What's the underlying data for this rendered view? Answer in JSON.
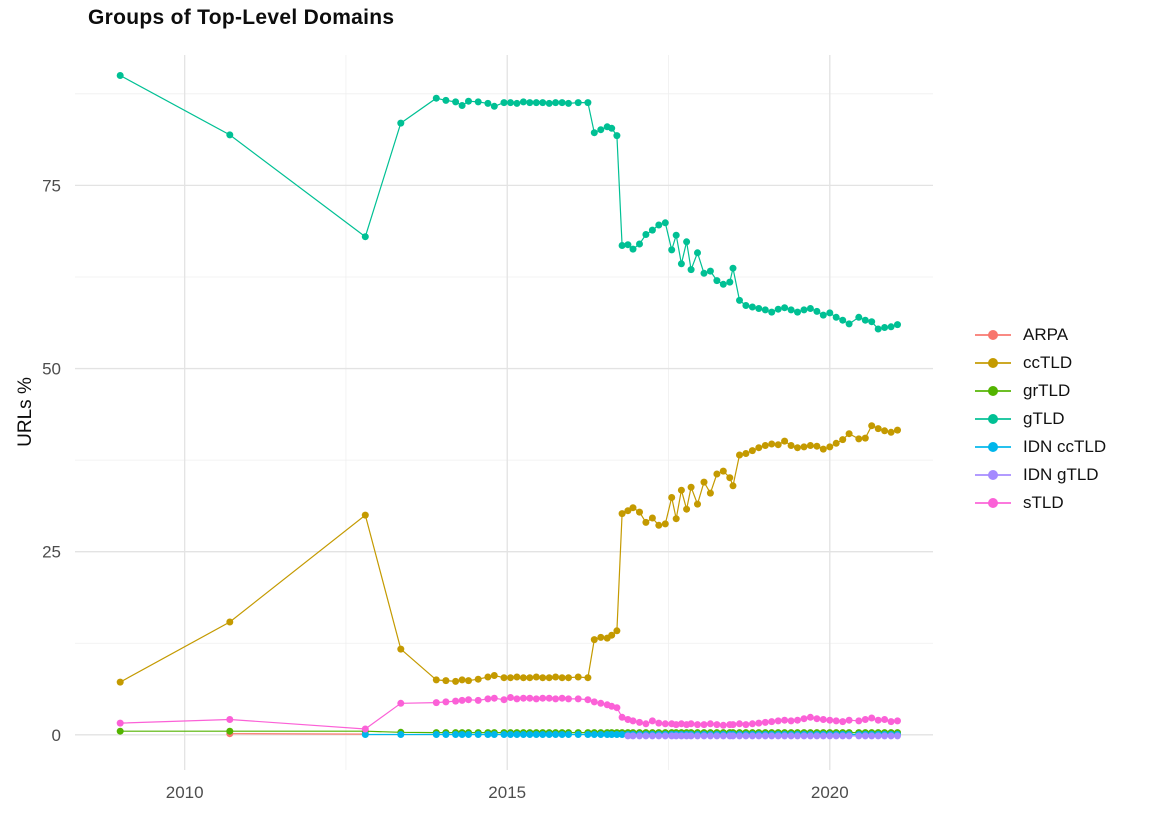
{
  "chart_data": {
    "type": "line",
    "title": "Groups of Top-Level Domains",
    "xlabel": "",
    "ylabel": "URLs %",
    "grid": "on",
    "legend_position": "right",
    "x_domain": [
      2008.3,
      2021.6
    ],
    "y_domain": [
      -4.8,
      92.8
    ],
    "x_ticks": [
      2010,
      2015,
      2020
    ],
    "x_minor": [
      2012.5,
      2017.5
    ],
    "y_ticks": [
      0,
      25,
      50,
      75
    ],
    "y_minor": [
      12.5,
      37.5,
      62.5,
      87.5
    ],
    "grid_major_color": "#e3e3e3",
    "grid_minor_color": "#efefef",
    "series": [
      {
        "name": "ARPA",
        "color": "#F8766D",
        "x": [
          2010.7,
          2012.8
        ],
        "y": [
          0.15,
          0.1
        ]
      },
      {
        "name": "ccTLD",
        "color": "#C49A00",
        "x": [
          2009,
          2010.7,
          2012.8,
          2013.35,
          2013.9,
          2014.05,
          2014.2,
          2014.3,
          2014.4,
          2014.55,
          2014.7,
          2014.8,
          2014.95,
          2015.05,
          2015.15,
          2015.25,
          2015.35,
          2015.45,
          2015.55,
          2015.65,
          2015.75,
          2015.85,
          2015.95,
          2016.1,
          2016.25,
          2016.35,
          2016.45,
          2016.55,
          2016.62,
          2016.7,
          2016.78,
          2016.87,
          2016.95,
          2017.05,
          2017.15,
          2017.25,
          2017.35,
          2017.45,
          2017.55,
          2017.62,
          2017.7,
          2017.78,
          2017.85,
          2017.95,
          2018.05,
          2018.15,
          2018.25,
          2018.35,
          2018.45,
          2018.5,
          2018.6,
          2018.7,
          2018.8,
          2018.9,
          2019.0,
          2019.1,
          2019.2,
          2019.3,
          2019.4,
          2019.5,
          2019.6,
          2019.7,
          2019.8,
          2019.9,
          2020.0,
          2020.1,
          2020.2,
          2020.3,
          2020.45,
          2020.55,
          2020.65,
          2020.75,
          2020.85,
          2020.95,
          2021.05
        ],
        "y": [
          7.2,
          15.4,
          30.0,
          11.7,
          7.5,
          7.4,
          7.3,
          7.5,
          7.4,
          7.6,
          7.9,
          8.1,
          7.8,
          7.8,
          7.9,
          7.8,
          7.8,
          7.9,
          7.8,
          7.8,
          7.9,
          7.8,
          7.8,
          7.9,
          7.8,
          13.0,
          13.3,
          13.2,
          13.6,
          14.2,
          30.2,
          30.6,
          31.0,
          30.4,
          29.0,
          29.6,
          28.6,
          28.8,
          32.4,
          29.5,
          33.4,
          30.8,
          33.8,
          31.5,
          34.5,
          33.0,
          35.6,
          36.0,
          35.1,
          34.0,
          38.2,
          38.4,
          38.8,
          39.2,
          39.5,
          39.7,
          39.6,
          40.1,
          39.5,
          39.2,
          39.3,
          39.5,
          39.4,
          39.0,
          39.3,
          39.8,
          40.3,
          41.1,
          40.4,
          40.5,
          42.2,
          41.8,
          41.5,
          41.3,
          41.6
        ]
      },
      {
        "name": "grTLD",
        "color": "#53B400",
        "x": [
          2009,
          2010.7,
          2012.8,
          2013.35,
          2013.9,
          2014.05,
          2014.2,
          2014.3,
          2014.4,
          2014.55,
          2014.7,
          2014.8,
          2014.95,
          2015.05,
          2015.15,
          2015.25,
          2015.35,
          2015.45,
          2015.55,
          2015.65,
          2015.75,
          2015.85,
          2015.95,
          2016.1,
          2016.25,
          2016.35,
          2016.45,
          2016.55,
          2016.62,
          2016.7,
          2016.78,
          2016.87,
          2016.95,
          2017.05,
          2017.15,
          2017.25,
          2017.35,
          2017.45,
          2017.55,
          2017.62,
          2017.7,
          2017.78,
          2017.85,
          2017.95,
          2018.05,
          2018.15,
          2018.25,
          2018.35,
          2018.45,
          2018.5,
          2018.6,
          2018.7,
          2018.8,
          2018.9,
          2019.0,
          2019.1,
          2019.2,
          2019.3,
          2019.4,
          2019.5,
          2019.6,
          2019.7,
          2019.8,
          2019.9,
          2020.0,
          2020.1,
          2020.2,
          2020.3,
          2020.45,
          2020.55,
          2020.65,
          2020.75,
          2020.85,
          2020.95,
          2021.05
        ],
        "y": [
          0.5,
          0.5,
          0.5,
          0.35,
          0.3,
          0.3,
          0.3,
          0.3,
          0.3,
          0.3,
          0.3,
          0.3,
          0.3,
          0.3,
          0.3,
          0.3,
          0.3,
          0.3,
          0.3,
          0.3,
          0.3,
          0.3,
          0.3,
          0.3,
          0.3,
          0.3,
          0.3,
          0.3,
          0.3,
          0.3,
          0.3,
          0.3,
          0.3,
          0.3,
          0.3,
          0.3,
          0.3,
          0.3,
          0.3,
          0.3,
          0.3,
          0.3,
          0.3,
          0.3,
          0.3,
          0.3,
          0.3,
          0.3,
          0.3,
          0.3,
          0.3,
          0.3,
          0.3,
          0.3,
          0.3,
          0.3,
          0.3,
          0.3,
          0.3,
          0.3,
          0.3,
          0.3,
          0.3,
          0.3,
          0.3,
          0.3,
          0.3,
          0.3,
          0.3,
          0.3,
          0.3,
          0.3,
          0.3,
          0.3,
          0.3
        ]
      },
      {
        "name": "gTLD",
        "color": "#00C094",
        "x": [
          2009,
          2010.7,
          2012.8,
          2013.35,
          2013.9,
          2014.05,
          2014.2,
          2014.3,
          2014.4,
          2014.55,
          2014.7,
          2014.8,
          2014.95,
          2015.05,
          2015.15,
          2015.25,
          2015.35,
          2015.45,
          2015.55,
          2015.65,
          2015.75,
          2015.85,
          2015.95,
          2016.1,
          2016.25,
          2016.35,
          2016.45,
          2016.55,
          2016.62,
          2016.7,
          2016.78,
          2016.87,
          2016.95,
          2017.05,
          2017.15,
          2017.25,
          2017.35,
          2017.45,
          2017.55,
          2017.62,
          2017.7,
          2017.78,
          2017.85,
          2017.95,
          2018.05,
          2018.15,
          2018.25,
          2018.35,
          2018.45,
          2018.5,
          2018.6,
          2018.7,
          2018.8,
          2018.9,
          2019.0,
          2019.1,
          2019.2,
          2019.3,
          2019.4,
          2019.5,
          2019.6,
          2019.7,
          2019.8,
          2019.9,
          2020.0,
          2020.1,
          2020.2,
          2020.3,
          2020.45,
          2020.55,
          2020.65,
          2020.75,
          2020.85,
          2020.95,
          2021.05
        ],
        "y": [
          90.0,
          81.9,
          68.0,
          83.5,
          86.9,
          86.6,
          86.4,
          85.9,
          86.5,
          86.4,
          86.2,
          85.8,
          86.3,
          86.3,
          86.2,
          86.4,
          86.3,
          86.3,
          86.3,
          86.2,
          86.3,
          86.3,
          86.2,
          86.3,
          86.3,
          82.2,
          82.6,
          83.0,
          82.8,
          81.8,
          66.8,
          66.9,
          66.3,
          67.0,
          68.3,
          68.9,
          69.6,
          69.9,
          66.2,
          68.2,
          64.3,
          67.3,
          63.5,
          65.8,
          63.0,
          63.3,
          62.0,
          61.5,
          61.8,
          63.7,
          59.3,
          58.6,
          58.4,
          58.2,
          58.0,
          57.7,
          58.1,
          58.3,
          58.0,
          57.7,
          58.0,
          58.2,
          57.8,
          57.3,
          57.6,
          57.0,
          56.6,
          56.1,
          57.0,
          56.6,
          56.4,
          55.4,
          55.6,
          55.7,
          56.0
        ]
      },
      {
        "name": "IDN ccTLD",
        "color": "#00B6EB",
        "x": [
          2012.8,
          2013.35,
          2013.9,
          2014.05,
          2014.2,
          2014.3,
          2014.4,
          2014.55,
          2014.7,
          2014.8,
          2014.95,
          2015.05,
          2015.15,
          2015.25,
          2015.35,
          2015.45,
          2015.55,
          2015.65,
          2015.75,
          2015.85,
          2015.95,
          2016.1,
          2016.25,
          2016.35,
          2016.45,
          2016.55,
          2016.62,
          2016.7,
          2016.78,
          2016.87,
          2016.95,
          2017.05,
          2017.15,
          2017.25,
          2017.35,
          2017.45,
          2017.55,
          2017.62,
          2017.7,
          2017.78,
          2017.85,
          2017.95,
          2018.05,
          2018.15,
          2018.25,
          2018.35,
          2018.45,
          2018.5,
          2018.6,
          2018.7,
          2018.8,
          2018.9,
          2019.0,
          2019.1,
          2019.2,
          2019.3,
          2019.4,
          2019.5,
          2019.6,
          2019.7,
          2019.8,
          2019.9,
          2020.0,
          2020.1,
          2020.2,
          2020.3,
          2020.45,
          2020.55,
          2020.65,
          2020.75,
          2020.85,
          2020.95,
          2021.05
        ],
        "y": [
          0.05,
          0.05,
          0.05,
          0.05,
          0.05,
          0.05,
          0.05,
          0.05,
          0.05,
          0.05,
          0.05,
          0.05,
          0.05,
          0.05,
          0.05,
          0.05,
          0.05,
          0.05,
          0.05,
          0.05,
          0.05,
          0.05,
          0.05,
          0.05,
          0.05,
          0.05,
          0.05,
          0.05,
          0.05,
          0.05,
          0.05,
          0.05,
          0.05,
          0.05,
          0.05,
          0.05,
          0.05,
          0.05,
          0.05,
          0.05,
          0.05,
          0.05,
          0.05,
          0.05,
          0.05,
          0.05,
          0.05,
          0.05,
          0.05,
          0.05,
          0.05,
          0.05,
          0.05,
          0.05,
          0.05,
          0.05,
          0.05,
          0.05,
          0.05,
          0.05,
          0.05,
          0.05,
          0.05,
          0.05,
          0.05,
          0.05,
          0.05,
          0.05,
          0.05,
          0.05,
          0.05,
          0.05,
          0.05
        ]
      },
      {
        "name": "IDN gTLD",
        "color": "#A58AFF",
        "x": [
          2016.87,
          2016.95,
          2017.05,
          2017.15,
          2017.25,
          2017.35,
          2017.45,
          2017.55,
          2017.62,
          2017.7,
          2017.78,
          2017.85,
          2017.95,
          2018.05,
          2018.15,
          2018.25,
          2018.35,
          2018.45,
          2018.5,
          2018.6,
          2018.7,
          2018.8,
          2018.9,
          2019.0,
          2019.1,
          2019.2,
          2019.3,
          2019.4,
          2019.5,
          2019.6,
          2019.7,
          2019.8,
          2019.9,
          2020.0,
          2020.1,
          2020.2,
          2020.3,
          2020.45,
          2020.55,
          2020.65,
          2020.75,
          2020.85,
          2020.95,
          2021.05
        ],
        "y": [
          -0.15,
          -0.15,
          -0.15,
          -0.15,
          -0.15,
          -0.15,
          -0.15,
          -0.15,
          -0.15,
          -0.15,
          -0.15,
          -0.15,
          -0.15,
          -0.15,
          -0.15,
          -0.15,
          -0.15,
          -0.15,
          -0.15,
          -0.15,
          -0.15,
          -0.15,
          -0.15,
          -0.15,
          -0.15,
          -0.15,
          -0.15,
          -0.15,
          -0.15,
          -0.15,
          -0.15,
          -0.15,
          -0.15,
          -0.15,
          -0.15,
          -0.15,
          -0.15,
          -0.15,
          -0.15,
          -0.15,
          -0.15,
          -0.15,
          -0.15,
          -0.15
        ]
      },
      {
        "name": "sTLD",
        "color": "#FB61D7",
        "x": [
          2009,
          2010.7,
          2012.8,
          2013.35,
          2013.9,
          2014.05,
          2014.2,
          2014.3,
          2014.4,
          2014.55,
          2014.7,
          2014.8,
          2014.95,
          2015.05,
          2015.15,
          2015.25,
          2015.35,
          2015.45,
          2015.55,
          2015.65,
          2015.75,
          2015.85,
          2015.95,
          2016.1,
          2016.25,
          2016.35,
          2016.45,
          2016.55,
          2016.62,
          2016.7,
          2016.78,
          2016.87,
          2016.95,
          2017.05,
          2017.15,
          2017.25,
          2017.35,
          2017.45,
          2017.55,
          2017.62,
          2017.7,
          2017.78,
          2017.85,
          2017.95,
          2018.05,
          2018.15,
          2018.25,
          2018.35,
          2018.45,
          2018.5,
          2018.6,
          2018.7,
          2018.8,
          2018.9,
          2019.0,
          2019.1,
          2019.2,
          2019.3,
          2019.4,
          2019.5,
          2019.6,
          2019.7,
          2019.8,
          2019.9,
          2020.0,
          2020.1,
          2020.2,
          2020.3,
          2020.45,
          2020.55,
          2020.65,
          2020.75,
          2020.85,
          2020.95,
          2021.05
        ],
        "y": [
          1.6,
          2.1,
          0.8,
          4.3,
          4.4,
          4.5,
          4.6,
          4.7,
          4.8,
          4.7,
          4.9,
          5.0,
          4.8,
          5.1,
          4.9,
          5.0,
          5.0,
          4.9,
          5.0,
          5.0,
          4.9,
          5.0,
          4.9,
          4.9,
          4.8,
          4.5,
          4.3,
          4.1,
          3.9,
          3.7,
          2.4,
          2.1,
          1.9,
          1.7,
          1.5,
          1.9,
          1.6,
          1.5,
          1.5,
          1.4,
          1.5,
          1.4,
          1.5,
          1.4,
          1.4,
          1.5,
          1.4,
          1.3,
          1.4,
          1.4,
          1.5,
          1.4,
          1.5,
          1.6,
          1.7,
          1.8,
          1.9,
          2.0,
          1.9,
          2.0,
          2.2,
          2.4,
          2.2,
          2.1,
          2.0,
          1.9,
          1.8,
          2.0,
          1.9,
          2.1,
          2.3,
          2.0,
          2.1,
          1.8,
          1.9
        ]
      }
    ]
  }
}
